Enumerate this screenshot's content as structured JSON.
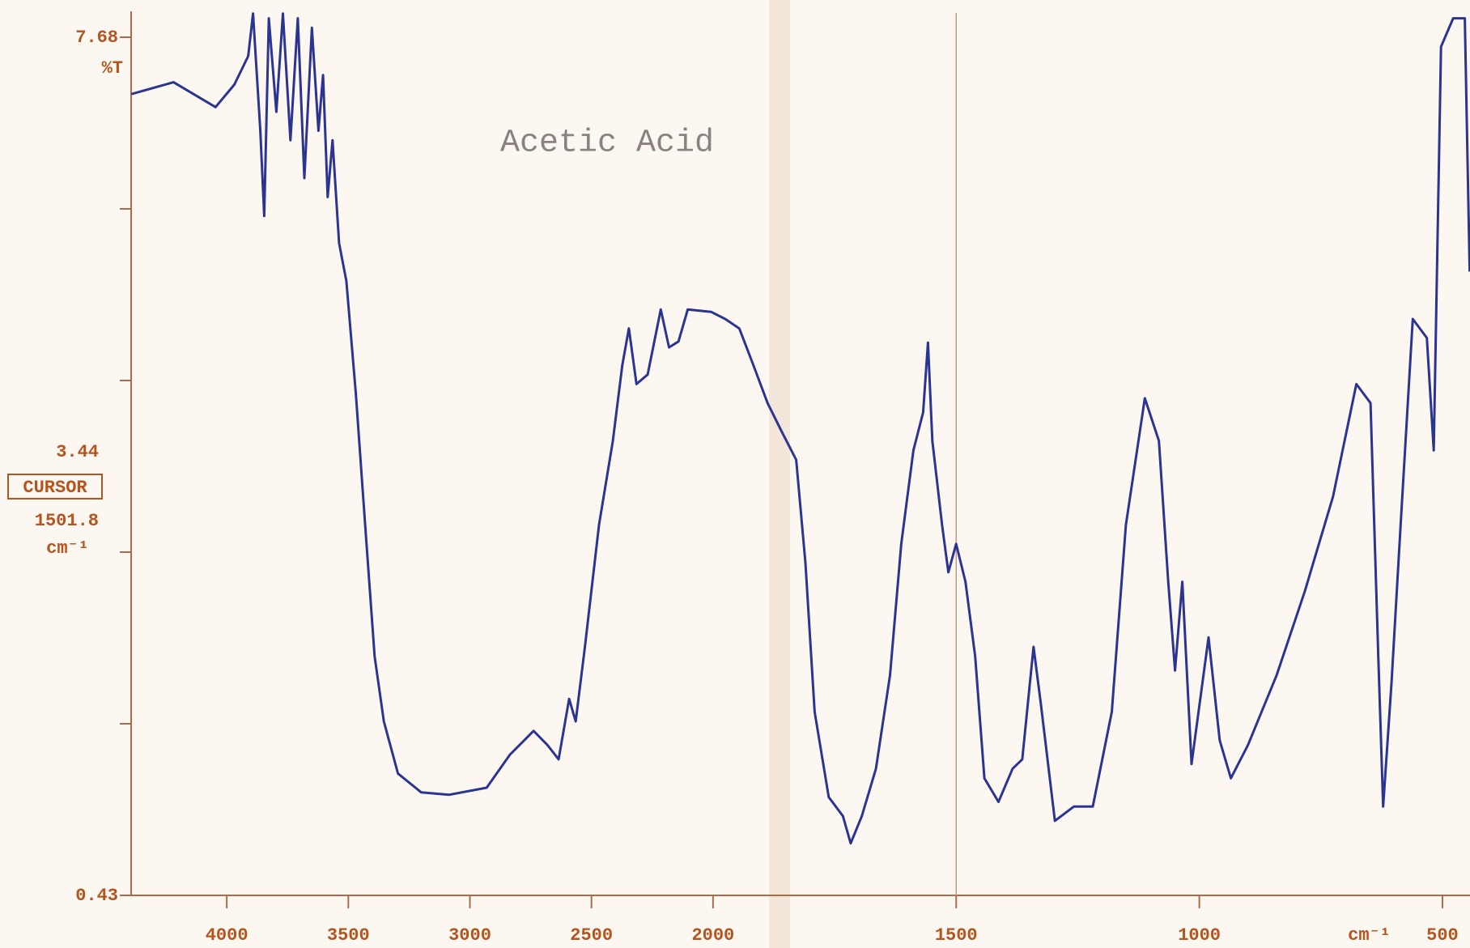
{
  "chart_data": {
    "type": "line",
    "title": "Acetic Acid",
    "y_label": "%T",
    "x_unit": "cm⁻¹",
    "cursor": {
      "value": 3.44,
      "label": "CURSOR",
      "position": 1501.8,
      "unit": "cm⁻¹"
    },
    "color": "#2b3591",
    "xlim": [
      4400,
      450
    ],
    "x_scale_break": {
      "at": 2000,
      "expansion": 2
    },
    "xticks": [
      4000,
      3500,
      3000,
      2500,
      2000,
      1500,
      1000,
      500
    ],
    "vertical_line": 1500,
    "ylim": [
      0.43,
      7.68
    ],
    "yticks": [
      0.43,
      7.68
    ],
    "yminor_ticks": [
      1.88,
      3.33,
      4.78,
      6.23
    ],
    "x": [
      4392,
      4219,
      4046,
      3969,
      3912,
      3892,
      3862,
      3846,
      3827,
      3796,
      3769,
      3738,
      3708,
      3681,
      3650,
      3623,
      3604,
      3585,
      3565,
      3538,
      3508,
      3469,
      3431,
      3392,
      3354,
      3296,
      3200,
      3085,
      2931,
      2835,
      2738,
      2681,
      2635,
      2592,
      2565,
      2527,
      2469,
      2412,
      2373,
      2346,
      2315,
      2269,
      2215,
      2181,
      2142,
      2104,
      2008,
      1975,
      1946,
      1917,
      1888,
      1859,
      1829,
      1810,
      1791,
      1762,
      1733,
      1717,
      1694,
      1665,
      1636,
      1613,
      1588,
      1568,
      1558,
      1549,
      1529,
      1516,
      1500,
      1481,
      1461,
      1442,
      1413,
      1384,
      1364,
      1341,
      1326,
      1297,
      1258,
      1219,
      1180,
      1151,
      1112,
      1083,
      1064,
      1050,
      1035,
      1016,
      981,
      958,
      935,
      900,
      841,
      783,
      725,
      677,
      648,
      632,
      622,
      605,
      586,
      561,
      532,
      518,
      503,
      478,
      454,
      444
    ],
    "values": [
      7.2,
      7.3,
      7.09,
      7.28,
      7.52,
      7.88,
      6.89,
      6.17,
      7.84,
      7.05,
      7.88,
      6.81,
      7.84,
      6.49,
      7.76,
      6.89,
      7.36,
      6.33,
      6.81,
      5.94,
      5.62,
      4.67,
      3.56,
      2.45,
      1.9,
      1.46,
      1.3,
      1.28,
      1.34,
      1.62,
      1.82,
      1.7,
      1.58,
      2.09,
      1.9,
      2.53,
      3.56,
      4.27,
      4.91,
      5.22,
      4.75,
      4.83,
      5.38,
      5.06,
      5.11,
      5.38,
      5.36,
      5.3,
      5.22,
      4.91,
      4.59,
      4.35,
      4.11,
      3.24,
      1.98,
      1.26,
      1.1,
      0.87,
      1.1,
      1.5,
      2.29,
      3.4,
      4.19,
      4.51,
      5.1,
      4.27,
      3.56,
      3.16,
      3.4,
      3.08,
      2.45,
      1.42,
      1.22,
      1.5,
      1.58,
      2.53,
      2.05,
      1.06,
      1.18,
      1.18,
      1.98,
      3.56,
      4.63,
      4.27,
      3.08,
      2.33,
      3.08,
      1.54,
      2.61,
      1.74,
      1.42,
      1.7,
      2.29,
      3.0,
      3.8,
      4.75,
      4.59,
      2.45,
      1.18,
      2.21,
      3.56,
      5.3,
      5.14,
      4.19,
      7.6,
      7.84,
      7.84,
      5.7
    ]
  }
}
